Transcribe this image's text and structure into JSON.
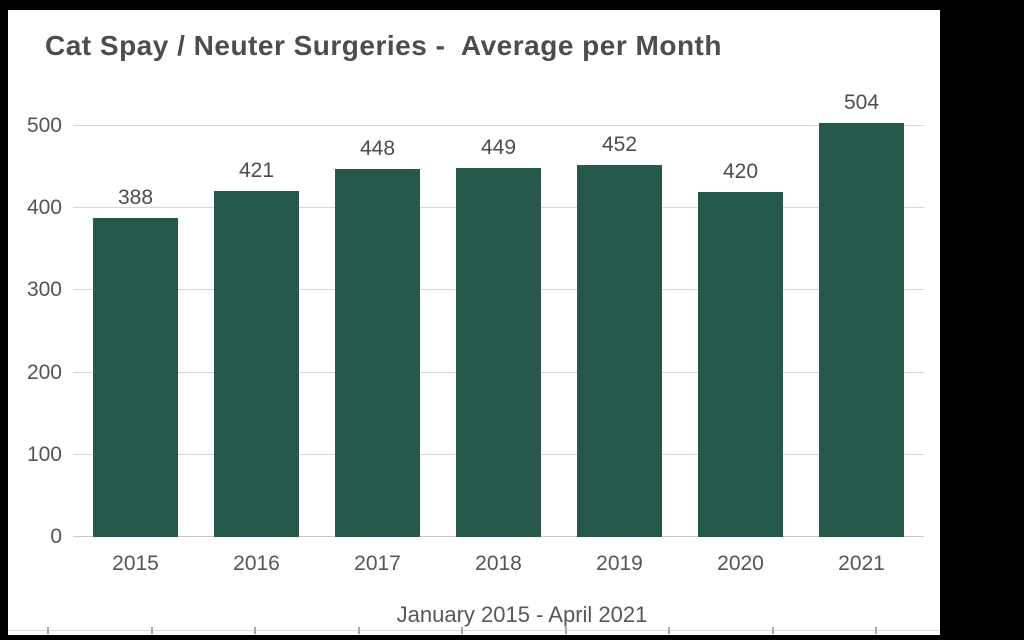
{
  "title": "Cat Spay / Neuter Surgeries -  Average per Month",
  "subtitle": "January 2015 - April 2021",
  "colors": {
    "bar": "#26594C",
    "title_text": "#4D4D4D",
    "axis_text": "#555555",
    "value_label_text": "#4D4D4D",
    "gridline": "#D7D7D7",
    "background": "#FFFFFF",
    "frame": "#000000"
  },
  "chart_data": {
    "type": "bar",
    "title": "Cat Spay / Neuter Surgeries - Average per Month",
    "categories": [
      "2015",
      "2016",
      "2017",
      "2018",
      "2019",
      "2020",
      "2021"
    ],
    "values": [
      388,
      421,
      448,
      449,
      452,
      420,
      504
    ],
    "xlabel": "January 2015 - April 2021",
    "ylabel": "",
    "ylim": [
      0,
      500
    ],
    "yticks": [
      0,
      100,
      200,
      300,
      400,
      500
    ],
    "grid": true,
    "data_labels": true,
    "legend": false
  }
}
